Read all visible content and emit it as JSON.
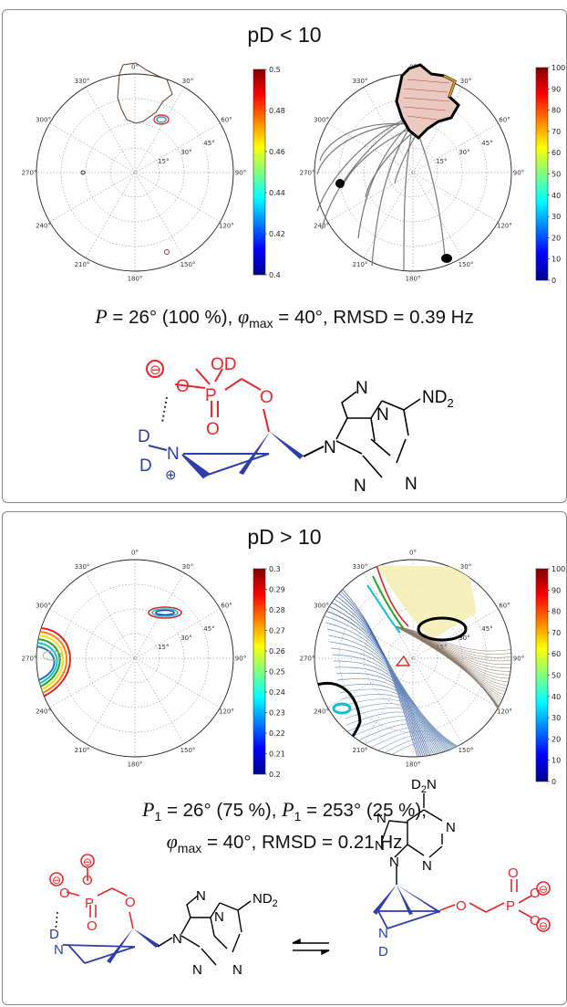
{
  "panel_top": {
    "title": "pD < 10",
    "result_pre": "P",
    "result_text": " = 26° (100 %), ",
    "result_phi": "φ",
    "result_phi_sub": "max",
    "result_tail": " = 40°, RMSD = 0.39 Hz"
  },
  "panel_bottom": {
    "title": "pD > 10",
    "line1_p1": "P",
    "line1_sub1": "1",
    "line1_t1": " = 26° (75 %), ",
    "line1_p2": "P",
    "line1_sub2": "1",
    "line1_t2": " = 253° (25 %),",
    "line2_phi": "φ",
    "line2_sub": "max",
    "line2_tail": " = 40°, RMSD = 0.21 Hz"
  },
  "polar_labels": {
    "angles": [
      "0°",
      "30°",
      "60°",
      "90°",
      "120°",
      "150°",
      "180°",
      "210°",
      "240°",
      "270°",
      "300°",
      "330°"
    ],
    "radial": [
      "15°",
      "30°",
      "45°"
    ]
  },
  "colorbars": {
    "top_left": [
      "0.5",
      "0.48",
      "0.46",
      "0.44",
      "0.42",
      "0.4"
    ],
    "top_right": [
      "100",
      "90",
      "80",
      "70",
      "60",
      "50",
      "40",
      "30",
      "20",
      "10",
      "0"
    ],
    "bottom_left": [
      "0.3",
      "0.29",
      "0.28",
      "0.27",
      "0.26",
      "0.25",
      "0.24",
      "0.23",
      "0.22",
      "0.21",
      "0.2"
    ],
    "bottom_right": [
      "100",
      "90",
      "80",
      "70",
      "60",
      "50",
      "40",
      "30",
      "20",
      "10",
      "0"
    ]
  },
  "chem": {
    "minus": "⊖",
    "plus": "⊕",
    "O": "O",
    "OD": "OD",
    "P": "P",
    "D": "D",
    "N": "N",
    "ND2": "ND",
    "ND2_sub": "2",
    "D2N": "D",
    "D2N_sub": "2",
    "D2N_tail": "N"
  },
  "colors": {
    "red": "#e8262b",
    "blue": "#2e3da8",
    "contour_black": "#000000"
  }
}
